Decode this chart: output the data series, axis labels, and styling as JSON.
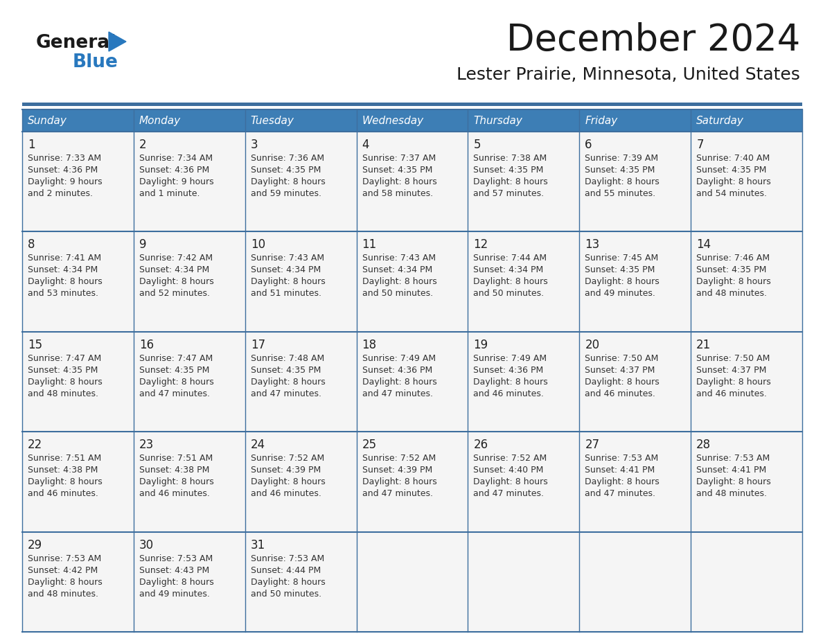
{
  "title": "December 2024",
  "subtitle": "Lester Prairie, Minnesota, United States",
  "days_of_week": [
    "Sunday",
    "Monday",
    "Tuesday",
    "Wednesday",
    "Thursday",
    "Friday",
    "Saturday"
  ],
  "header_bg": "#3d7eb5",
  "header_text": "#ffffff",
  "cell_bg": "#f5f5f5",
  "border_color": "#3d6e9e",
  "text_color": "#333333",
  "day_num_color": "#222222",
  "logo_general_color": "#1a1a1a",
  "logo_blue_color": "#2878be",
  "calendar_data": [
    {
      "day": 1,
      "col": 0,
      "row": 0,
      "sunrise": "7:33 AM",
      "sunset": "4:36 PM",
      "daylight_h": "9 hours",
      "daylight_m": "and 2 minutes."
    },
    {
      "day": 2,
      "col": 1,
      "row": 0,
      "sunrise": "7:34 AM",
      "sunset": "4:36 PM",
      "daylight_h": "9 hours",
      "daylight_m": "and 1 minute."
    },
    {
      "day": 3,
      "col": 2,
      "row": 0,
      "sunrise": "7:36 AM",
      "sunset": "4:35 PM",
      "daylight_h": "8 hours",
      "daylight_m": "and 59 minutes."
    },
    {
      "day": 4,
      "col": 3,
      "row": 0,
      "sunrise": "7:37 AM",
      "sunset": "4:35 PM",
      "daylight_h": "8 hours",
      "daylight_m": "and 58 minutes."
    },
    {
      "day": 5,
      "col": 4,
      "row": 0,
      "sunrise": "7:38 AM",
      "sunset": "4:35 PM",
      "daylight_h": "8 hours",
      "daylight_m": "and 57 minutes."
    },
    {
      "day": 6,
      "col": 5,
      "row": 0,
      "sunrise": "7:39 AM",
      "sunset": "4:35 PM",
      "daylight_h": "8 hours",
      "daylight_m": "and 55 minutes."
    },
    {
      "day": 7,
      "col": 6,
      "row": 0,
      "sunrise": "7:40 AM",
      "sunset": "4:35 PM",
      "daylight_h": "8 hours",
      "daylight_m": "and 54 minutes."
    },
    {
      "day": 8,
      "col": 0,
      "row": 1,
      "sunrise": "7:41 AM",
      "sunset": "4:34 PM",
      "daylight_h": "8 hours",
      "daylight_m": "and 53 minutes."
    },
    {
      "day": 9,
      "col": 1,
      "row": 1,
      "sunrise": "7:42 AM",
      "sunset": "4:34 PM",
      "daylight_h": "8 hours",
      "daylight_m": "and 52 minutes."
    },
    {
      "day": 10,
      "col": 2,
      "row": 1,
      "sunrise": "7:43 AM",
      "sunset": "4:34 PM",
      "daylight_h": "8 hours",
      "daylight_m": "and 51 minutes."
    },
    {
      "day": 11,
      "col": 3,
      "row": 1,
      "sunrise": "7:43 AM",
      "sunset": "4:34 PM",
      "daylight_h": "8 hours",
      "daylight_m": "and 50 minutes."
    },
    {
      "day": 12,
      "col": 4,
      "row": 1,
      "sunrise": "7:44 AM",
      "sunset": "4:34 PM",
      "daylight_h": "8 hours",
      "daylight_m": "and 50 minutes."
    },
    {
      "day": 13,
      "col": 5,
      "row": 1,
      "sunrise": "7:45 AM",
      "sunset": "4:35 PM",
      "daylight_h": "8 hours",
      "daylight_m": "and 49 minutes."
    },
    {
      "day": 14,
      "col": 6,
      "row": 1,
      "sunrise": "7:46 AM",
      "sunset": "4:35 PM",
      "daylight_h": "8 hours",
      "daylight_m": "and 48 minutes."
    },
    {
      "day": 15,
      "col": 0,
      "row": 2,
      "sunrise": "7:47 AM",
      "sunset": "4:35 PM",
      "daylight_h": "8 hours",
      "daylight_m": "and 48 minutes."
    },
    {
      "day": 16,
      "col": 1,
      "row": 2,
      "sunrise": "7:47 AM",
      "sunset": "4:35 PM",
      "daylight_h": "8 hours",
      "daylight_m": "and 47 minutes."
    },
    {
      "day": 17,
      "col": 2,
      "row": 2,
      "sunrise": "7:48 AM",
      "sunset": "4:35 PM",
      "daylight_h": "8 hours",
      "daylight_m": "and 47 minutes."
    },
    {
      "day": 18,
      "col": 3,
      "row": 2,
      "sunrise": "7:49 AM",
      "sunset": "4:36 PM",
      "daylight_h": "8 hours",
      "daylight_m": "and 47 minutes."
    },
    {
      "day": 19,
      "col": 4,
      "row": 2,
      "sunrise": "7:49 AM",
      "sunset": "4:36 PM",
      "daylight_h": "8 hours",
      "daylight_m": "and 46 minutes."
    },
    {
      "day": 20,
      "col": 5,
      "row": 2,
      "sunrise": "7:50 AM",
      "sunset": "4:37 PM",
      "daylight_h": "8 hours",
      "daylight_m": "and 46 minutes."
    },
    {
      "day": 21,
      "col": 6,
      "row": 2,
      "sunrise": "7:50 AM",
      "sunset": "4:37 PM",
      "daylight_h": "8 hours",
      "daylight_m": "and 46 minutes."
    },
    {
      "day": 22,
      "col": 0,
      "row": 3,
      "sunrise": "7:51 AM",
      "sunset": "4:38 PM",
      "daylight_h": "8 hours",
      "daylight_m": "and 46 minutes."
    },
    {
      "day": 23,
      "col": 1,
      "row": 3,
      "sunrise": "7:51 AM",
      "sunset": "4:38 PM",
      "daylight_h": "8 hours",
      "daylight_m": "and 46 minutes."
    },
    {
      "day": 24,
      "col": 2,
      "row": 3,
      "sunrise": "7:52 AM",
      "sunset": "4:39 PM",
      "daylight_h": "8 hours",
      "daylight_m": "and 46 minutes."
    },
    {
      "day": 25,
      "col": 3,
      "row": 3,
      "sunrise": "7:52 AM",
      "sunset": "4:39 PM",
      "daylight_h": "8 hours",
      "daylight_m": "and 47 minutes."
    },
    {
      "day": 26,
      "col": 4,
      "row": 3,
      "sunrise": "7:52 AM",
      "sunset": "4:40 PM",
      "daylight_h": "8 hours",
      "daylight_m": "and 47 minutes."
    },
    {
      "day": 27,
      "col": 5,
      "row": 3,
      "sunrise": "7:53 AM",
      "sunset": "4:41 PM",
      "daylight_h": "8 hours",
      "daylight_m": "and 47 minutes."
    },
    {
      "day": 28,
      "col": 6,
      "row": 3,
      "sunrise": "7:53 AM",
      "sunset": "4:41 PM",
      "daylight_h": "8 hours",
      "daylight_m": "and 48 minutes."
    },
    {
      "day": 29,
      "col": 0,
      "row": 4,
      "sunrise": "7:53 AM",
      "sunset": "4:42 PM",
      "daylight_h": "8 hours",
      "daylight_m": "and 48 minutes."
    },
    {
      "day": 30,
      "col": 1,
      "row": 4,
      "sunrise": "7:53 AM",
      "sunset": "4:43 PM",
      "daylight_h": "8 hours",
      "daylight_m": "and 49 minutes."
    },
    {
      "day": 31,
      "col": 2,
      "row": 4,
      "sunrise": "7:53 AM",
      "sunset": "4:44 PM",
      "daylight_h": "8 hours",
      "daylight_m": "and 50 minutes."
    }
  ]
}
